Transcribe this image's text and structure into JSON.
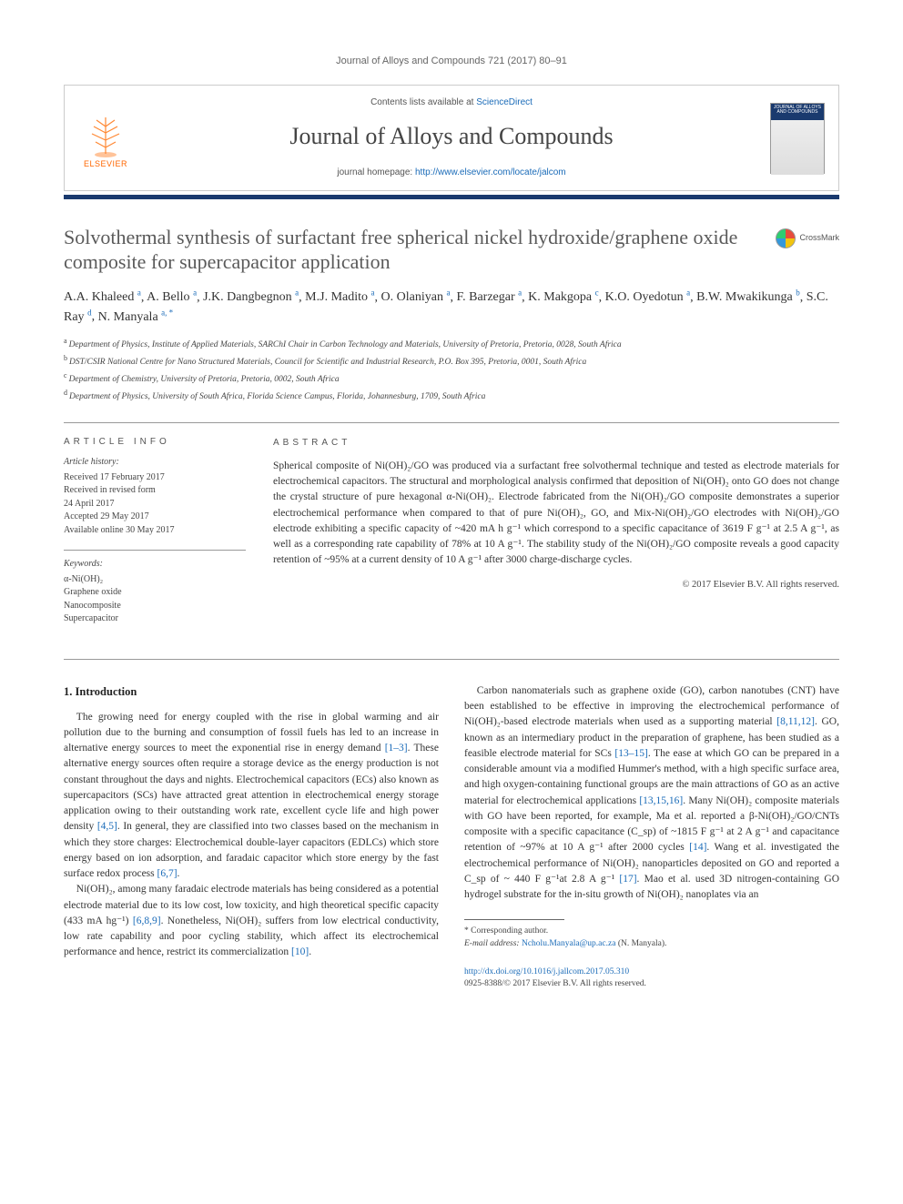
{
  "topHeader": "Journal of Alloys and Compounds 721 (2017) 80–91",
  "masthead": {
    "contentsLine": "Contents lists available at ",
    "contentsLink": "ScienceDirect",
    "journalName": "Journal of Alloys and Compounds",
    "homepagePrefix": "journal homepage: ",
    "homepageUrl": "http://www.elsevier.com/locate/jalcom",
    "elsevierLabel": "ELSEVIER",
    "coverLabel": "JOURNAL OF ALLOYS AND COMPOUNDS"
  },
  "crossmarkLabel": "CrossMark",
  "title": "Solvothermal synthesis of surfactant free spherical nickel hydroxide/graphene oxide composite for supercapacitor application",
  "authors": [
    {
      "name": "A.A. Khaleed",
      "aff": "a"
    },
    {
      "name": "A. Bello",
      "aff": "a"
    },
    {
      "name": "J.K. Dangbegnon",
      "aff": "a"
    },
    {
      "name": "M.J. Madito",
      "aff": "a"
    },
    {
      "name": "O. Olaniyan",
      "aff": "a"
    },
    {
      "name": "F. Barzegar",
      "aff": "a"
    },
    {
      "name": "K. Makgopa",
      "aff": "c"
    },
    {
      "name": "K.O. Oyedotun",
      "aff": "a"
    },
    {
      "name": "B.W. Mwakikunga",
      "aff": "b"
    },
    {
      "name": "S.C. Ray",
      "aff": "d"
    },
    {
      "name": "N. Manyala",
      "aff": "a, *"
    }
  ],
  "affiliations": [
    {
      "marker": "a",
      "text": "Department of Physics, Institute of Applied Materials, SARChI Chair in Carbon Technology and Materials, University of Pretoria, Pretoria, 0028, South Africa"
    },
    {
      "marker": "b",
      "text": "DST/CSIR National Centre for Nano Structured Materials, Council for Scientific and Industrial Research, P.O. Box 395, Pretoria, 0001, South Africa"
    },
    {
      "marker": "c",
      "text": "Department of Chemistry, University of Pretoria, Pretoria, 0002, South Africa"
    },
    {
      "marker": "d",
      "text": "Department of Physics, University of South Africa, Florida Science Campus, Florida, Johannesburg, 1709, South Africa"
    }
  ],
  "articleInfo": {
    "label": "ARTICLE INFO",
    "historyHead": "Article history:",
    "history": [
      "Received 17 February 2017",
      "Received in revised form",
      "24 April 2017",
      "Accepted 29 May 2017",
      "Available online 30 May 2017"
    ],
    "keywordsHead": "Keywords:",
    "keywords": [
      "α-Ni(OH)₂",
      "Graphene oxide",
      "Nanocomposite",
      "Supercapacitor"
    ]
  },
  "abstract": {
    "label": "ABSTRACT",
    "text": "Spherical composite of Ni(OH)₂/GO was produced via a surfactant free solvothermal technique and tested as electrode materials for electrochemical capacitors. The structural and morphological analysis confirmed that deposition of Ni(OH)₂ onto GO does not change the crystal structure of pure hexagonal α-Ni(OH)₂. Electrode fabricated from the Ni(OH)₂/GO composite demonstrates a superior electrochemical performance when compared to that of pure Ni(OH)₂, GO, and Mix-Ni(OH)₂/GO electrodes with Ni(OH)₂/GO electrode exhibiting a specific capacity of ~420 mA h g⁻¹ which correspond to a specific capacitance of 3619 F g⁻¹ at 2.5 A g⁻¹, as well as a corresponding rate capability of 78% at 10 A g⁻¹. The stability study of the Ni(OH)₂/GO composite reveals a good capacity retention of ~95% at a current density of 10 A g⁻¹ after 3000 charge-discharge cycles.",
    "copyright": "© 2017 Elsevier B.V. All rights reserved."
  },
  "sectionHeading": "1. Introduction",
  "para1": "The growing need for energy coupled with the rise in global warming and air pollution due to the burning and consumption of fossil fuels has led to an increase in alternative energy sources to meet the exponential rise in energy demand ",
  "para1Ref": "[1–3]",
  "para1b": ". These alternative energy sources often require a storage device as the energy production is not constant throughout the days and nights. Electrochemical capacitors (ECs) also known as supercapacitors (SCs) have attracted great attention in electrochemical energy storage application owing to their outstanding work rate, excellent cycle life and high power density ",
  "para1Ref2": "[4,5]",
  "para1c": ". In general, they are classified into two classes based on the mechanism in which they store charges: Electrochemical double-layer capacitors (EDLCs) which store energy based on ion adsorption, and faradaic capacitor which store energy by the fast surface redox process ",
  "para1Ref3": "[6,7]",
  "para1d": ".",
  "para2": "Ni(OH)₂, among many faradaic electrode materials has being considered as a potential electrode material due to its low cost, low toxicity, and high theoretical specific capacity (433 mA hg⁻¹) ",
  "para3Ref": "[6,8,9]",
  "para3": ". Nonetheless, Ni(OH)₂ suffers from low electrical conductivity, low rate capability and poor cycling stability, which affect its electrochemical performance and hence, restrict its commercialization ",
  "para3Ref2": "[10]",
  "para3b": ".",
  "para4": "Carbon nanomaterials such as graphene oxide (GO), carbon nanotubes (CNT) have been established to be effective in improving the electrochemical performance of Ni(OH)₂-based electrode materials when used as a supporting material ",
  "para4Ref": "[8,11,12]",
  "para4b": ". GO, known as an intermediary product in the preparation of graphene, has been studied as a feasible electrode material for SCs ",
  "para4Ref2": "[13–15]",
  "para4c": ". The ease at which GO can be prepared in a considerable amount via a modified Hummer's method, with a high specific surface area, and high oxygen-containing functional groups are the main attractions of GO as an active material for electrochemical applications ",
  "para4Ref3": "[13,15,16]",
  "para4d": ". Many Ni(OH)₂ composite materials with GO have been reported, for example, Ma et al. reported a β-Ni(OH)₂/GO/CNTs composite with a specific capacitance (C_sp) of ~1815 F g⁻¹ at 2 A g⁻¹ and capacitance retention of ~97% at 10 A g⁻¹ after 2000 cycles ",
  "para4Ref4": "[14]",
  "para4e": ". Wang et al. investigated the electrochemical performance of Ni(OH)₂ nanoparticles deposited on GO and reported a C_sp of ~ 440 F g⁻¹at 2.8 A g⁻¹ ",
  "para4Ref5": "[17]",
  "para4f": ". Mao et al. used 3D nitrogen-containing GO hydrogel substrate for the in-situ growth of Ni(OH)₂ nanoplates via an",
  "footnotes": {
    "corresponding": "* Corresponding author.",
    "emailLabel": "E-mail address: ",
    "email": "Ncholu.Manyala@up.ac.za",
    "emailSuffix": " (N. Manyala)."
  },
  "footer": {
    "doi": "http://dx.doi.org/10.1016/j.jallcom.2017.05.310",
    "issn": "0925-8388/© 2017 Elsevier B.V. All rights reserved."
  },
  "colors": {
    "accent": "#1a3a6e",
    "link": "#1a6bb8",
    "elsevierOrange": "#ff6600",
    "textGray": "#5a5a5a"
  }
}
